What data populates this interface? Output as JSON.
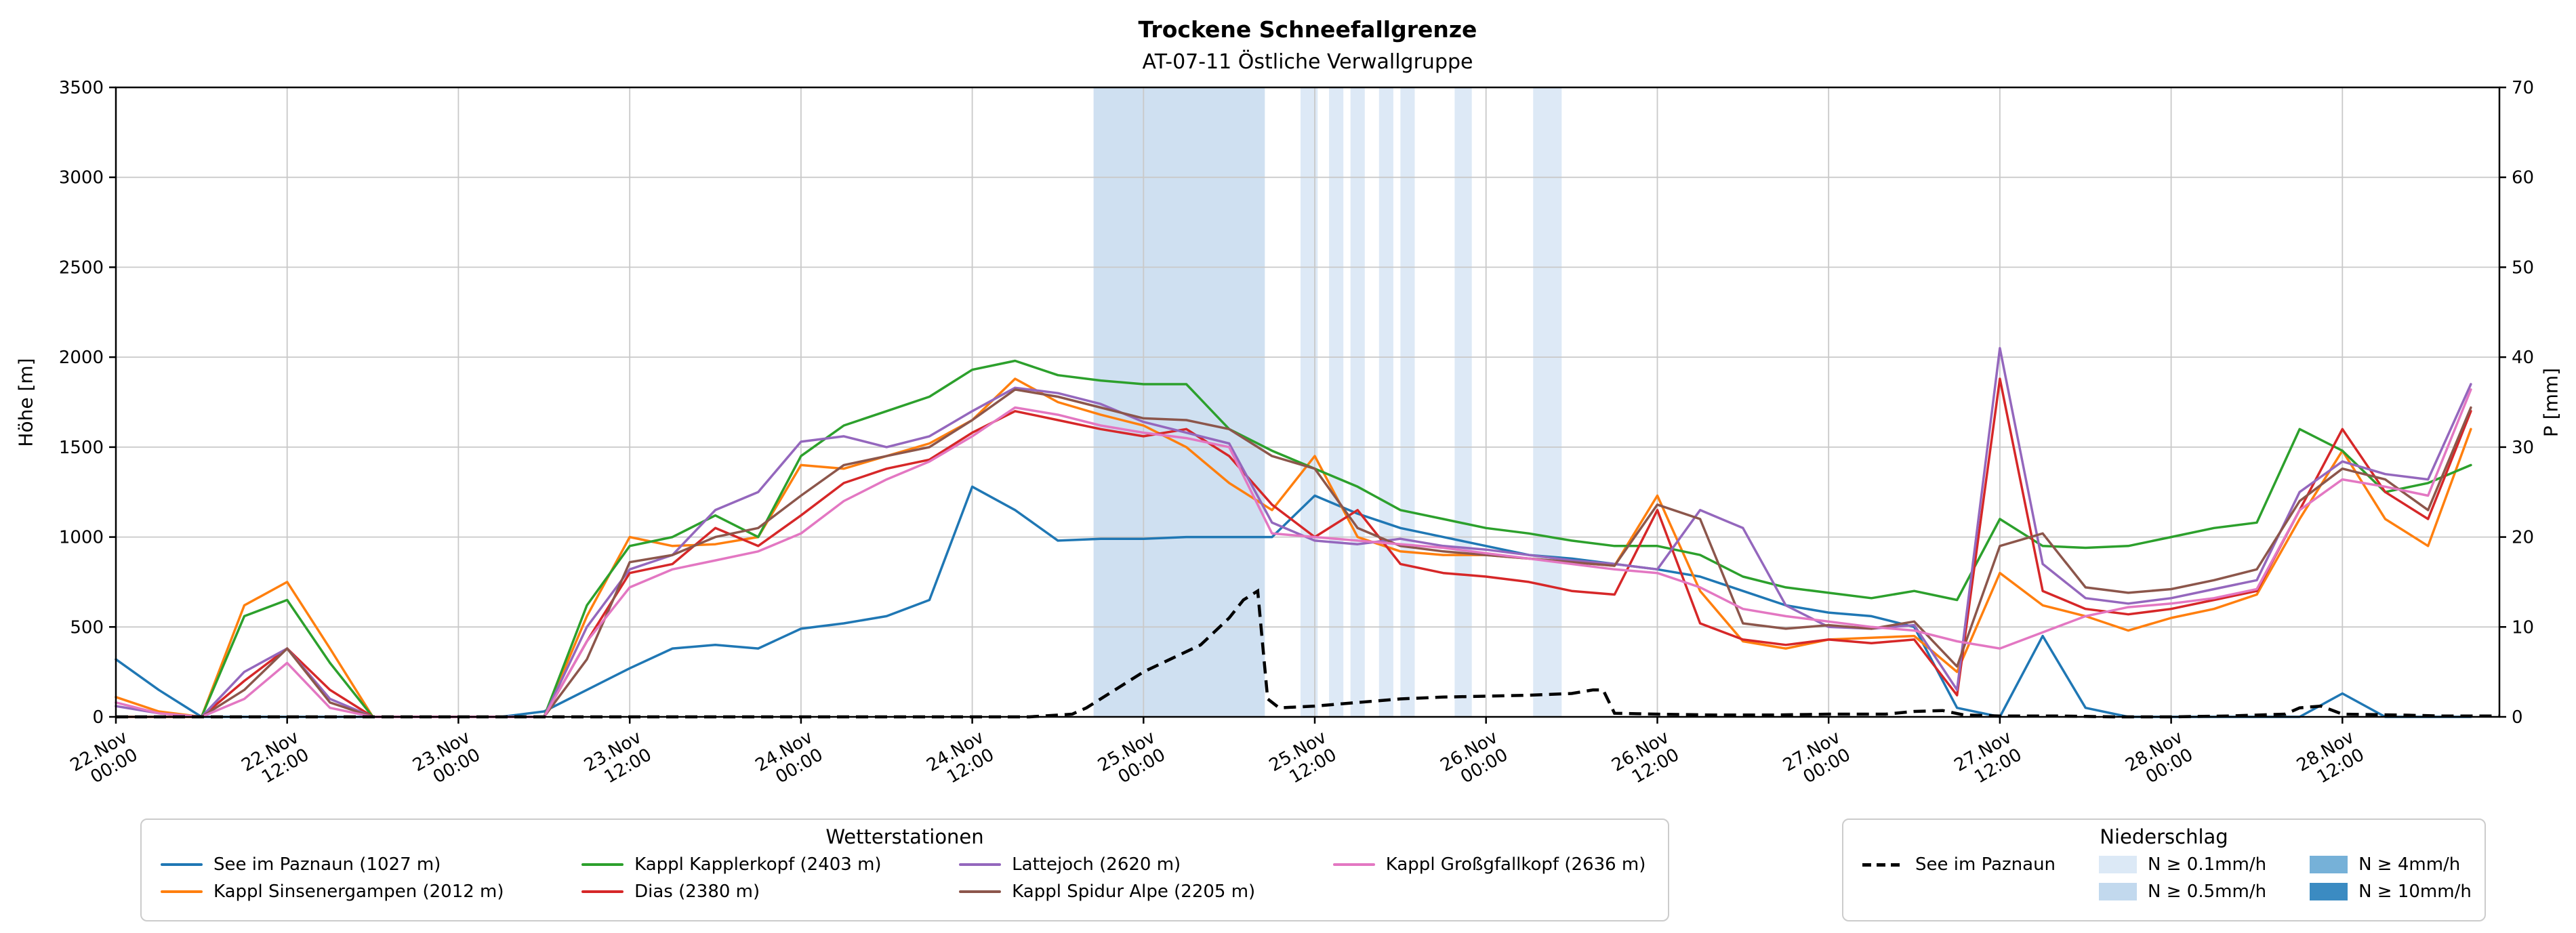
{
  "chart_data": {
    "type": "line",
    "title": "Trockene Schneefallgrenze",
    "subtitle": "AT-07-11 Östliche Verwallgruppe",
    "grid": true,
    "left_axis": {
      "label": "Höhe [m]",
      "min": 0,
      "max": 3500,
      "ticks": [
        0,
        500,
        1000,
        1500,
        2000,
        2500,
        3000,
        3500
      ]
    },
    "right_axis": {
      "label": "P [mm]",
      "min": 0,
      "max": 70,
      "ticks": [
        0,
        10,
        20,
        30,
        40,
        50,
        60,
        70
      ]
    },
    "x_axis": {
      "min": 0,
      "max": 167,
      "unit": "hours since 22.Nov 00:00",
      "ticks": [
        {
          "t": 0,
          "date": "22.Nov",
          "time": "00:00"
        },
        {
          "t": 12,
          "date": "22.Nov",
          "time": "12:00"
        },
        {
          "t": 24,
          "date": "23.Nov",
          "time": "00:00"
        },
        {
          "t": 36,
          "date": "23.Nov",
          "time": "12:00"
        },
        {
          "t": 48,
          "date": "24.Nov",
          "time": "00:00"
        },
        {
          "t": 60,
          "date": "24.Nov",
          "time": "12:00"
        },
        {
          "t": 72,
          "date": "25.Nov",
          "time": "00:00"
        },
        {
          "t": 84,
          "date": "25.Nov",
          "time": "12:00"
        },
        {
          "t": 96,
          "date": "26.Nov",
          "time": "00:00"
        },
        {
          "t": 108,
          "date": "26.Nov",
          "time": "12:00"
        },
        {
          "t": 120,
          "date": "27.Nov",
          "time": "00:00"
        },
        {
          "t": 132,
          "date": "27.Nov",
          "time": "12:00"
        },
        {
          "t": 144,
          "date": "28.Nov",
          "time": "00:00"
        },
        {
          "t": 156,
          "date": "28.Nov",
          "time": "12:00"
        }
      ]
    },
    "x_hours": [
      0,
      3,
      6,
      9,
      12,
      15,
      18,
      21,
      24,
      27,
      30,
      33,
      36,
      39,
      42,
      45,
      48,
      51,
      54,
      57,
      60,
      63,
      66,
      69,
      72,
      75,
      78,
      81,
      84,
      87,
      90,
      93,
      96,
      99,
      102,
      105,
      108,
      111,
      114,
      117,
      120,
      123,
      126,
      129,
      132,
      135,
      138,
      141,
      144,
      147,
      150,
      153,
      156,
      159,
      162,
      165
    ],
    "series": [
      {
        "name": "See im Paznaun (1027 m)",
        "color": "#1f77b4",
        "values": [
          320,
          150,
          0,
          0,
          0,
          0,
          0,
          0,
          0,
          0,
          30,
          150,
          270,
          380,
          400,
          380,
          490,
          520,
          560,
          650,
          1280,
          1150,
          980,
          990,
          990,
          1000,
          1000,
          1000,
          1230,
          1130,
          1050,
          1000,
          950,
          900,
          880,
          850,
          820,
          780,
          700,
          620,
          580,
          560,
          500,
          50,
          0,
          450,
          50,
          0,
          0,
          0,
          0,
          0,
          130,
          0,
          0,
          0
        ]
      },
      {
        "name": "Kappl Sinsenergampen (2012 m)",
        "color": "#ff7f0e",
        "values": [
          110,
          30,
          0,
          620,
          750,
          380,
          0,
          0,
          0,
          0,
          0,
          560,
          1000,
          950,
          960,
          1000,
          1400,
          1380,
          1450,
          1520,
          1650,
          1880,
          1750,
          1680,
          1620,
          1500,
          1300,
          1150,
          1450,
          1000,
          920,
          900,
          900,
          880,
          860,
          840,
          1230,
          700,
          420,
          380,
          430,
          440,
          450,
          250,
          800,
          620,
          560,
          480,
          550,
          600,
          680,
          1100,
          1480,
          1100,
          950,
          1600
        ]
      },
      {
        "name": "Kappl Kapplerkopf (2403 m)",
        "color": "#2ca02c",
        "values": [
          0,
          0,
          0,
          560,
          650,
          300,
          0,
          0,
          0,
          0,
          0,
          620,
          950,
          1000,
          1120,
          1000,
          1450,
          1620,
          1700,
          1780,
          1930,
          1980,
          1900,
          1870,
          1850,
          1850,
          1600,
          1480,
          1380,
          1280,
          1150,
          1100,
          1050,
          1020,
          980,
          950,
          950,
          900,
          780,
          720,
          690,
          660,
          700,
          650,
          1100,
          950,
          940,
          950,
          1000,
          1050,
          1080,
          1600,
          1480,
          1250,
          1300,
          1400
        ]
      },
      {
        "name": "Dias (2380 m)",
        "color": "#d62728",
        "values": [
          0,
          0,
          0,
          200,
          380,
          150,
          0,
          0,
          0,
          0,
          0,
          420,
          800,
          850,
          1050,
          950,
          1120,
          1300,
          1380,
          1430,
          1580,
          1700,
          1650,
          1600,
          1560,
          1600,
          1450,
          1180,
          1000,
          1150,
          850,
          800,
          780,
          750,
          700,
          680,
          1150,
          520,
          430,
          400,
          430,
          410,
          430,
          120,
          1880,
          700,
          600,
          570,
          600,
          650,
          700,
          1150,
          1600,
          1250,
          1100,
          1700
        ]
      },
      {
        "name": "Lattejoch (2620 m)",
        "color": "#9467bd",
        "values": [
          60,
          20,
          0,
          250,
          380,
          100,
          0,
          0,
          0,
          0,
          0,
          500,
          820,
          900,
          1150,
          1250,
          1530,
          1560,
          1500,
          1560,
          1700,
          1830,
          1800,
          1740,
          1640,
          1580,
          1520,
          1080,
          980,
          960,
          990,
          950,
          930,
          900,
          870,
          850,
          820,
          1150,
          1050,
          620,
          500,
          490,
          510,
          150,
          2050,
          850,
          660,
          630,
          660,
          710,
          760,
          1250,
          1420,
          1350,
          1320,
          1850
        ]
      },
      {
        "name": "Kappl Spidur Alpe (2205 m)",
        "color": "#8c564b",
        "values": [
          0,
          0,
          0,
          150,
          380,
          80,
          0,
          0,
          0,
          0,
          0,
          320,
          860,
          900,
          1000,
          1050,
          1230,
          1400,
          1450,
          1500,
          1650,
          1820,
          1780,
          1720,
          1660,
          1650,
          1600,
          1450,
          1380,
          1050,
          950,
          920,
          900,
          880,
          860,
          840,
          1180,
          1100,
          520,
          490,
          510,
          490,
          530,
          280,
          950,
          1020,
          720,
          690,
          710,
          760,
          820,
          1200,
          1380,
          1320,
          1150,
          1720
        ]
      },
      {
        "name": "Kappl Großgfallkopf (2636 m)",
        "color": "#e377c2",
        "values": [
          80,
          20,
          0,
          100,
          300,
          50,
          0,
          0,
          0,
          0,
          0,
          420,
          720,
          820,
          870,
          920,
          1020,
          1200,
          1320,
          1420,
          1560,
          1720,
          1680,
          1620,
          1580,
          1550,
          1500,
          1020,
          1000,
          980,
          960,
          940,
          910,
          880,
          850,
          820,
          800,
          720,
          600,
          560,
          530,
          500,
          480,
          420,
          380,
          470,
          560,
          610,
          630,
          660,
          710,
          1150,
          1320,
          1280,
          1230,
          1820
        ]
      }
    ],
    "precipitation": {
      "name": "See im Paznaun",
      "color": "#000000",
      "style": "dashed",
      "axis": "right",
      "x_hours": [
        0,
        64,
        67,
        68,
        70,
        72,
        74,
        76,
        78,
        79,
        80,
        80.7,
        81.5,
        84,
        87,
        90,
        93,
        96,
        99,
        102,
        103.5,
        104.2,
        105,
        108,
        112,
        116,
        120,
        124,
        126,
        128,
        129.5,
        132,
        136,
        140,
        144,
        148,
        152,
        153,
        154.5,
        156,
        160,
        163,
        167
      ],
      "values_mm": [
        0,
        0,
        0.3,
        1,
        3,
        5,
        6.5,
        8,
        11,
        13,
        14,
        2,
        1,
        1.2,
        1.6,
        2,
        2.2,
        2.3,
        2.4,
        2.6,
        3,
        3,
        0.4,
        0.3,
        0.2,
        0.2,
        0.3,
        0.3,
        0.6,
        0.7,
        0.2,
        0.1,
        0.1,
        0,
        0,
        0.1,
        0.3,
        1,
        1.2,
        0.3,
        0.2,
        0.1,
        0.1
      ]
    },
    "precip_bands": [
      {
        "start_hours": 68.5,
        "end_hours": 80.5,
        "level": "N ≥ 0.5mm/h",
        "color": "#cfe0f1"
      },
      {
        "start_hours": 83.0,
        "end_hours": 84.2,
        "level": "N ≥ 0.1mm/h",
        "color": "#dde9f6"
      },
      {
        "start_hours": 85.0,
        "end_hours": 86.0,
        "level": "N ≥ 0.1mm/h",
        "color": "#dde9f6"
      },
      {
        "start_hours": 86.5,
        "end_hours": 87.5,
        "level": "N ≥ 0.1mm/h",
        "color": "#dde9f6"
      },
      {
        "start_hours": 88.5,
        "end_hours": 89.5,
        "level": "N ≥ 0.1mm/h",
        "color": "#dde9f6"
      },
      {
        "start_hours": 90.0,
        "end_hours": 91.0,
        "level": "N ≥ 0.1mm/h",
        "color": "#dde9f6"
      },
      {
        "start_hours": 93.8,
        "end_hours": 95.0,
        "level": "N ≥ 0.1mm/h",
        "color": "#dde9f6"
      },
      {
        "start_hours": 99.3,
        "end_hours": 101.3,
        "level": "N ≥ 0.1mm/h",
        "color": "#dde9f6"
      }
    ]
  },
  "legends": {
    "stations": {
      "title": "Wetterstationen"
    },
    "precip": {
      "title": "Niederschlag",
      "line_entry_label": "See im Paznaun",
      "levels": [
        {
          "label": "N ≥ 0.1mm/h",
          "color": "#dce9f6"
        },
        {
          "label": "N ≥ 0.5mm/h",
          "color": "#c2d9ee"
        },
        {
          "label": "N ≥ 4mm/h",
          "color": "#76b1d8"
        },
        {
          "label": "N ≥ 10mm/h",
          "color": "#3b8bc2"
        }
      ]
    }
  }
}
